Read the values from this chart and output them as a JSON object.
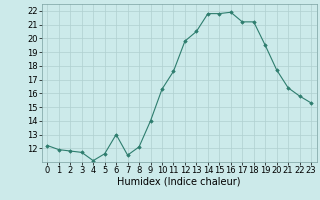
{
  "x": [
    0,
    1,
    2,
    3,
    4,
    5,
    6,
    7,
    8,
    9,
    10,
    11,
    12,
    13,
    14,
    15,
    16,
    17,
    18,
    19,
    20,
    21,
    22,
    23
  ],
  "y": [
    12.2,
    11.9,
    11.8,
    11.7,
    11.1,
    11.6,
    13.0,
    11.5,
    12.1,
    14.0,
    16.3,
    17.6,
    19.8,
    20.5,
    21.8,
    21.8,
    21.9,
    21.2,
    21.2,
    19.5,
    17.7,
    16.4,
    15.8,
    15.3
  ],
  "line_color": "#2e7d6e",
  "marker": "D",
  "marker_size": 1.8,
  "bg_color": "#cceaea",
  "grid_color": "#b0d0d0",
  "xlabel": "Humidex (Indice chaleur)",
  "xlabel_fontsize": 7,
  "tick_fontsize": 6,
  "ylim": [
    11,
    22.5
  ],
  "yticks": [
    12,
    13,
    14,
    15,
    16,
    17,
    18,
    19,
    20,
    21,
    22
  ],
  "xlim": [
    -0.5,
    23.5
  ],
  "xticks": [
    0,
    1,
    2,
    3,
    4,
    5,
    6,
    7,
    8,
    9,
    10,
    11,
    12,
    13,
    14,
    15,
    16,
    17,
    18,
    19,
    20,
    21,
    22,
    23
  ]
}
